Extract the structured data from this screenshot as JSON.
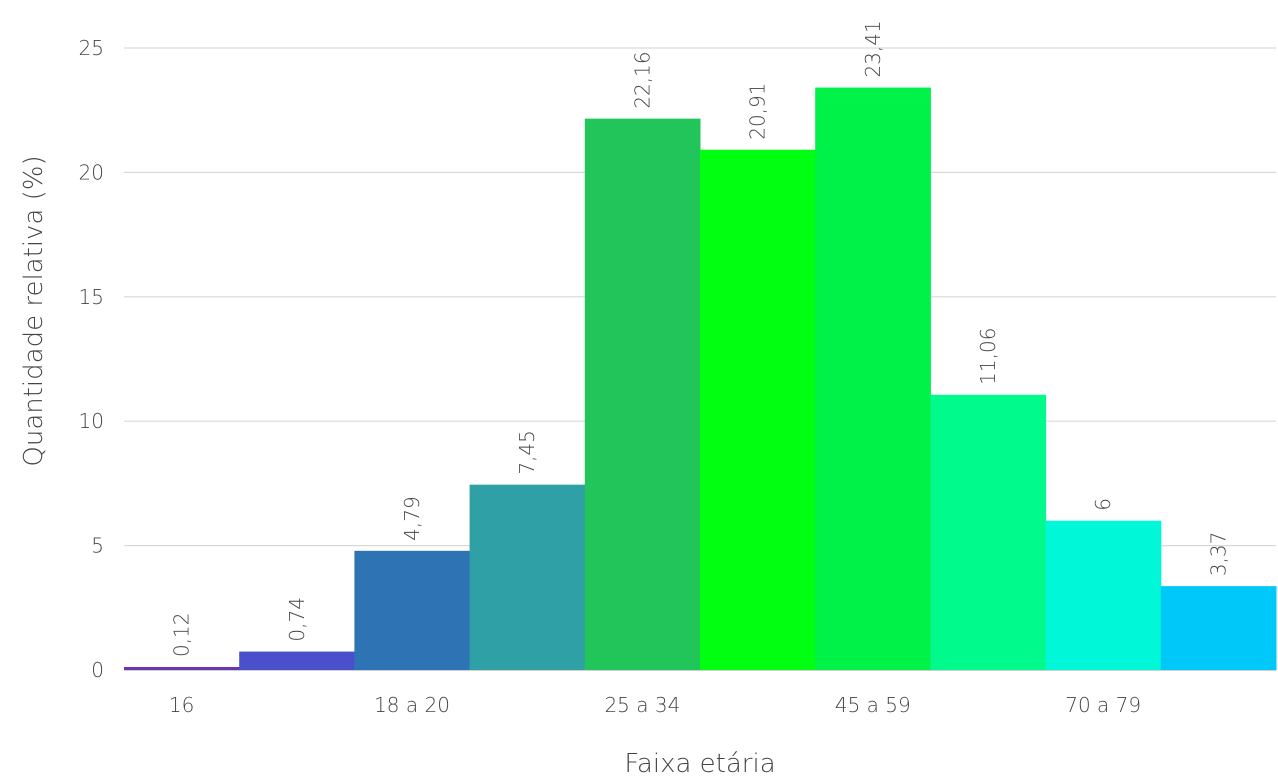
{
  "chart_data": {
    "type": "bar",
    "xlabel": "Faixa etária",
    "ylabel": "Quantidade relativa (%)",
    "ylim": [
      0,
      25
    ],
    "yticks": [
      "0",
      "5",
      "10",
      "15",
      "20",
      "25"
    ],
    "xtick_labels": [
      {
        "index": 0,
        "label": "16"
      },
      {
        "index": 2,
        "label": "18 a 20"
      },
      {
        "index": 4,
        "label": "25 a 34"
      },
      {
        "index": 6,
        "label": "45 a 59"
      },
      {
        "index": 8,
        "label": "70 a 79"
      }
    ],
    "grid": "horizontal",
    "legend": "none",
    "values": [
      0.12,
      0.74,
      4.79,
      7.45,
      22.16,
      20.91,
      23.41,
      11.06,
      6,
      3.37
    ],
    "data_labels": [
      "0,12",
      "0,74",
      "4,79",
      "7,45",
      "22,16",
      "20,91",
      "23,41",
      "11,06",
      "6",
      "3,37"
    ],
    "colors": [
      "#6a34b3",
      "#4a50cc",
      "#2e74b5",
      "#2ea0a6",
      "#22c55a",
      "#00ff10",
      "#00f148",
      "#00fb8c",
      "#00f8d8",
      "#00c8f8"
    ]
  }
}
